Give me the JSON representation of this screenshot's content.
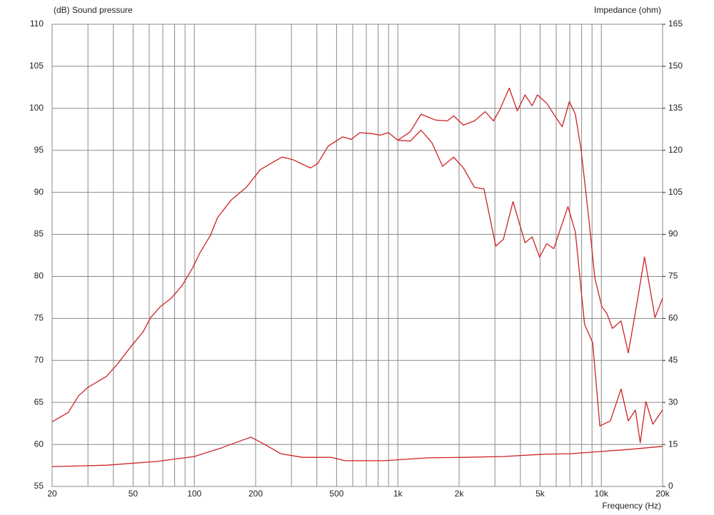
{
  "chart_data": {
    "type": "line",
    "y_label": "(dB)  Sound pressure",
    "y2_label": "Impedance  (ohm)",
    "x_label": "Frequency  (Hz)",
    "xscale": "log",
    "xlim": [
      20,
      20000
    ],
    "xticks": [
      20,
      50,
      100,
      200,
      500,
      {
        "value": 1000,
        "label": "1k"
      },
      {
        "value": 2000,
        "label": "2k"
      },
      {
        "value": 5000,
        "label": "5k"
      },
      {
        "value": 10000,
        "label": "10k"
      },
      {
        "value": 20000,
        "label": "20k"
      }
    ],
    "xgrid": [
      20,
      30,
      40,
      50,
      60,
      70,
      80,
      90,
      100,
      200,
      300,
      400,
      500,
      600,
      700,
      800,
      900,
      1000,
      2000,
      3000,
      4000,
      5000,
      6000,
      7000,
      8000,
      9000,
      10000,
      20000
    ],
    "ylim": [
      55,
      110
    ],
    "yticks": [
      55,
      60,
      65,
      70,
      75,
      80,
      85,
      90,
      95,
      100,
      105,
      110
    ],
    "y2lim": [
      0,
      165
    ],
    "y2ticks": [
      0,
      15,
      30,
      45,
      60,
      75,
      90,
      105,
      120,
      135,
      150,
      165
    ],
    "grid": true,
    "series": [
      {
        "color": "#cc2222",
        "x": [
          20,
          24,
          27,
          30,
          37,
          42,
          49,
          56,
          61,
          68,
          77,
          87,
          98,
          106,
          120,
          130,
          152,
          180,
          211,
          240,
          270,
          304,
          372,
          403,
          455,
          535,
          590,
          650,
          740,
          815,
          900,
          1000,
          1150,
          1300,
          1470,
          1660,
          1880,
          2100,
          2380,
          2650,
          3030,
          3300,
          3680,
          4220,
          4570,
          4970,
          5390,
          5840,
          6850,
          7450,
          8270,
          9070,
          9830,
          11080,
          12500,
          13570,
          14700,
          15530,
          16560,
          17900,
          20000
        ],
        "values": [
          62.7,
          63.8,
          65.8,
          66.8,
          68.1,
          69.6,
          71.7,
          73.4,
          75.1,
          76.4,
          77.4,
          78.9,
          81.0,
          82.7,
          84.9,
          87.0,
          89.1,
          90.6,
          92.7,
          93.5,
          94.2,
          93.9,
          92.9,
          93.4,
          95.5,
          96.6,
          96.3,
          97.1,
          97.0,
          96.8,
          97.1,
          96.2,
          96.1,
          97.4,
          95.9,
          93.1,
          94.2,
          92.9,
          90.6,
          90.4,
          83.6,
          84.4,
          88.9,
          84.0,
          84.7,
          82.3,
          83.9,
          83.3,
          88.3,
          85.3,
          74.3,
          72.1,
          62.2,
          62.8,
          66.6,
          62.8,
          64.1,
          60.2,
          65.1,
          62.4,
          64.1
        ]
      },
      {
        "color": "#cc2222",
        "x": [
          1000,
          1150,
          1300,
          1530,
          1750,
          1880,
          2100,
          2380,
          2690,
          2950,
          3150,
          3530,
          3860,
          4220,
          4570,
          4850,
          5390,
          5980,
          6420,
          6960,
          7450,
          7950,
          8700,
          9290,
          10060,
          10640,
          11340,
          12500,
          13570,
          15060,
          16300,
          18340,
          20000
        ],
        "values": [
          96.2,
          97.2,
          99.3,
          98.6,
          98.5,
          99.1,
          98.0,
          98.5,
          99.6,
          98.5,
          99.7,
          102.4,
          99.7,
          101.6,
          100.3,
          101.6,
          100.6,
          98.9,
          97.8,
          100.8,
          99.3,
          95.1,
          86.6,
          79.8,
          76.4,
          75.6,
          73.8,
          74.7,
          70.9,
          77.2,
          82.3,
          75.1,
          77.4
        ]
      },
      {
        "color": "#cc2222",
        "axis": "y2",
        "x": [
          20,
          37,
          65,
          100,
          135,
          172,
          190,
          218,
          266,
          340,
          470,
          550,
          860,
          1400,
          2100,
          3300,
          5200,
          7000,
          10000,
          13500,
          20000
        ],
        "values": [
          7.1,
          7.6,
          8.9,
          10.7,
          13.7,
          16.5,
          17.6,
          15.3,
          11.7,
          10.4,
          10.4,
          9.2,
          9.2,
          10.2,
          10.4,
          10.7,
          11.5,
          11.7,
          12.5,
          13.2,
          14.3
        ]
      }
    ]
  }
}
